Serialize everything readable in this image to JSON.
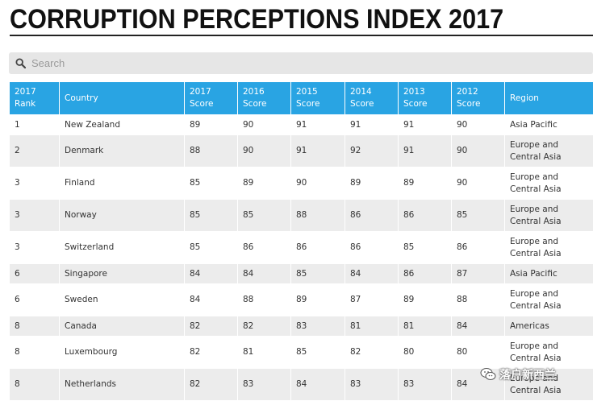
{
  "page": {
    "title": "CORRUPTION PERCEPTIONS INDEX 2017"
  },
  "search": {
    "placeholder": "Search",
    "icon": "search-icon"
  },
  "table": {
    "headers": [
      "2017 Rank",
      "Country",
      "2017 Score",
      "2016 Score",
      "2015 Score",
      "2014 Score",
      "2013 Score",
      "2012 Score",
      "Region"
    ],
    "rows": [
      [
        "1",
        "New Zealand",
        "89",
        "90",
        "91",
        "91",
        "91",
        "90",
        "Asia Pacific"
      ],
      [
        "2",
        "Denmark",
        "88",
        "90",
        "91",
        "92",
        "91",
        "90",
        "Europe and Central Asia"
      ],
      [
        "3",
        "Finland",
        "85",
        "89",
        "90",
        "89",
        "89",
        "90",
        "Europe and Central Asia"
      ],
      [
        "3",
        "Norway",
        "85",
        "85",
        "88",
        "86",
        "86",
        "85",
        "Europe and Central Asia"
      ],
      [
        "3",
        "Switzerland",
        "85",
        "86",
        "86",
        "86",
        "85",
        "86",
        "Europe and Central Asia"
      ],
      [
        "6",
        "Singapore",
        "84",
        "84",
        "85",
        "84",
        "86",
        "87",
        "Asia Pacific"
      ],
      [
        "6",
        "Sweden",
        "84",
        "88",
        "89",
        "87",
        "89",
        "88",
        "Europe and Central Asia"
      ],
      [
        "8",
        "Canada",
        "82",
        "82",
        "83",
        "81",
        "81",
        "84",
        "Americas"
      ],
      [
        "8",
        "Luxembourg",
        "82",
        "81",
        "85",
        "82",
        "80",
        "80",
        "Europe and Central Asia"
      ],
      [
        "8",
        "Netherlands",
        "82",
        "83",
        "84",
        "83",
        "83",
        "84",
        "Europe and Central Asia"
      ]
    ]
  },
  "watermark": {
    "text": "落户新西兰"
  },
  "colors": {
    "header_bg": "#29a4e3",
    "stripe": "#ececec"
  }
}
